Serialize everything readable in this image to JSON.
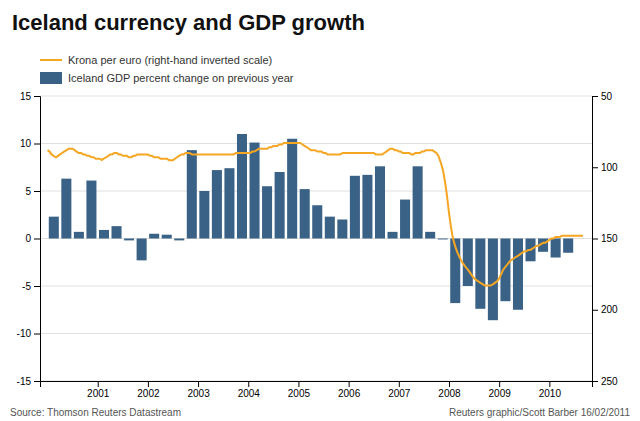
{
  "chart_data": {
    "type": "bar",
    "title": "Iceland currency and GDP growth",
    "annotations": [
      "Source: Thomson Reuters Datastream",
      "Reuters graphic/Scott Barber 16/02/2011"
    ],
    "xlim": [
      1999.85,
      2010.85
    ],
    "xticks": [
      2001,
      2002,
      2003,
      2004,
      2005,
      2006,
      2007,
      2008,
      2009,
      2010
    ],
    "ylim": [
      -15,
      15
    ],
    "yticks": [
      -15,
      -10,
      -5,
      0,
      5,
      10,
      15
    ],
    "y2lim": [
      250,
      50
    ],
    "y2ticks": [
      50,
      100,
      150,
      200,
      250
    ],
    "grid": true,
    "legend": "upper left",
    "series": [
      {
        "name": "Krona per euro (right-hand inverted scale)",
        "type": "line",
        "axis": "y2",
        "color": "#f5a623",
        "x": [
          2000.0,
          2000.04,
          2000.08,
          2000.12,
          2000.17,
          2000.21,
          2000.25,
          2000.29,
          2000.33,
          2000.38,
          2000.42,
          2000.46,
          2000.5,
          2000.54,
          2000.58,
          2000.62,
          2000.67,
          2000.71,
          2000.75,
          2000.79,
          2000.83,
          2000.88,
          2000.92,
          2000.96,
          2001.0,
          2001.04,
          2001.08,
          2001.12,
          2001.17,
          2001.21,
          2001.25,
          2001.29,
          2001.33,
          2001.38,
          2001.42,
          2001.46,
          2001.5,
          2001.54,
          2001.58,
          2001.62,
          2001.67,
          2001.71,
          2001.75,
          2001.79,
          2001.83,
          2001.88,
          2001.92,
          2001.96,
          2002.0,
          2002.04,
          2002.08,
          2002.12,
          2002.17,
          2002.21,
          2002.25,
          2002.29,
          2002.33,
          2002.38,
          2002.42,
          2002.46,
          2002.5,
          2002.54,
          2002.58,
          2002.62,
          2002.67,
          2002.71,
          2002.75,
          2002.79,
          2002.83,
          2002.88,
          2002.92,
          2002.96,
          2003.0,
          2003.04,
          2003.08,
          2003.12,
          2003.17,
          2003.21,
          2003.25,
          2003.29,
          2003.33,
          2003.38,
          2003.42,
          2003.46,
          2003.5,
          2003.54,
          2003.58,
          2003.62,
          2003.67,
          2003.71,
          2003.75,
          2003.79,
          2003.83,
          2003.88,
          2003.92,
          2003.96,
          2004.0,
          2004.04,
          2004.08,
          2004.12,
          2004.17,
          2004.21,
          2004.25,
          2004.29,
          2004.33,
          2004.38,
          2004.42,
          2004.46,
          2004.5,
          2004.54,
          2004.58,
          2004.62,
          2004.67,
          2004.71,
          2004.75,
          2004.79,
          2004.83,
          2004.88,
          2004.92,
          2004.96,
          2005.0,
          2005.04,
          2005.08,
          2005.12,
          2005.17,
          2005.21,
          2005.25,
          2005.29,
          2005.33,
          2005.38,
          2005.42,
          2005.46,
          2005.5,
          2005.54,
          2005.58,
          2005.62,
          2005.67,
          2005.71,
          2005.75,
          2005.79,
          2005.83,
          2005.88,
          2005.92,
          2005.96,
          2006.0,
          2006.04,
          2006.08,
          2006.12,
          2006.17,
          2006.21,
          2006.25,
          2006.29,
          2006.33,
          2006.38,
          2006.42,
          2006.46,
          2006.5,
          2006.54,
          2006.58,
          2006.62,
          2006.67,
          2006.71,
          2006.75,
          2006.79,
          2006.83,
          2006.88,
          2006.92,
          2006.96,
          2007.0,
          2007.04,
          2007.08,
          2007.12,
          2007.17,
          2007.21,
          2007.25,
          2007.29,
          2007.33,
          2007.38,
          2007.42,
          2007.46,
          2007.5,
          2007.54,
          2007.58,
          2007.62,
          2007.67,
          2007.71,
          2007.75,
          2007.79,
          2007.83,
          2007.88,
          2007.92,
          2007.96,
          2008.0,
          2008.04,
          2008.08,
          2008.12,
          2008.17,
          2008.21,
          2008.25,
          2008.29,
          2008.33,
          2008.38,
          2008.42,
          2008.46,
          2008.5,
          2008.54,
          2008.58,
          2008.62,
          2008.67,
          2008.71,
          2008.75,
          2008.79,
          2008.83,
          2008.88,
          2008.92,
          2008.96,
          2009.0,
          2009.04,
          2009.08,
          2009.12,
          2009.17,
          2009.21,
          2009.25,
          2009.29,
          2009.33,
          2009.38,
          2009.42,
          2009.46,
          2009.5,
          2009.54,
          2009.58,
          2009.62,
          2009.67,
          2009.71,
          2009.75,
          2009.79,
          2009.83,
          2009.88,
          2009.92,
          2009.96,
          2010.0,
          2010.04,
          2010.08,
          2010.12,
          2010.17,
          2010.21,
          2010.25,
          2010.29,
          2010.33,
          2010.38,
          2010.42,
          2010.46,
          2010.5,
          2010.54,
          2010.58,
          2010.62,
          2010.67
        ],
        "values": [
          88,
          89,
          91,
          92,
          93,
          92,
          91,
          90,
          89,
          88,
          87,
          87,
          87,
          88,
          89,
          90,
          90,
          91,
          91,
          92,
          92,
          93,
          93,
          94,
          94,
          94,
          95,
          94,
          93,
          92,
          91,
          91,
          90,
          90,
          91,
          91,
          92,
          92,
          92,
          93,
          93,
          92,
          92,
          91,
          91,
          91,
          91,
          91,
          91,
          92,
          92,
          93,
          93,
          93,
          94,
          94,
          94,
          94,
          95,
          95,
          95,
          94,
          93,
          92,
          91,
          91,
          90,
          90,
          90,
          91,
          91,
          91,
          91,
          91,
          91,
          91,
          91,
          91,
          91,
          91,
          91,
          91,
          91,
          91,
          91,
          91,
          91,
          91,
          91,
          91,
          90,
          90,
          90,
          90,
          90,
          90,
          90,
          90,
          89,
          89,
          88,
          87,
          87,
          87,
          87,
          87,
          86,
          86,
          85,
          85,
          85,
          84,
          84,
          83,
          83,
          83,
          83,
          83,
          83,
          83,
          83,
          83,
          84,
          85,
          86,
          87,
          88,
          88,
          88,
          89,
          89,
          89,
          90,
          90,
          91,
          91,
          91,
          91,
          91,
          91,
          91,
          90,
          90,
          90,
          90,
          90,
          90,
          90,
          90,
          90,
          90,
          90,
          90,
          90,
          90,
          90,
          90,
          91,
          91,
          91,
          91,
          90,
          89,
          88,
          87,
          87,
          88,
          88,
          89,
          89,
          90,
          90,
          90,
          90,
          91,
          91,
          90,
          90,
          90,
          89,
          89,
          88,
          88,
          88,
          88,
          89,
          90,
          92,
          96,
          102,
          110,
          120,
          132,
          142,
          150,
          155,
          160,
          163,
          166,
          168,
          170,
          172,
          174,
          176,
          178,
          179,
          180,
          181,
          182,
          183,
          183,
          183,
          183,
          182,
          181,
          180,
          178,
          175,
          172,
          170,
          168,
          166,
          165,
          164,
          163,
          162,
          161,
          160,
          159,
          159,
          158,
          158,
          157,
          156,
          155,
          155,
          154,
          153,
          153,
          152,
          151,
          150,
          150,
          149,
          149,
          149,
          148,
          148,
          148,
          148,
          148,
          148,
          148,
          148,
          148,
          148,
          148
        ]
      },
      {
        "name": "Iceland GDP percent change on previous year",
        "type": "bar",
        "color": "#3a6186",
        "x": [
          2000.125,
          2000.375,
          2000.625,
          2000.875,
          2001.125,
          2001.375,
          2001.625,
          2001.875,
          2002.125,
          2002.375,
          2002.625,
          2002.875,
          2003.125,
          2003.375,
          2003.625,
          2003.875,
          2004.125,
          2004.375,
          2004.625,
          2004.875,
          2005.125,
          2005.375,
          2005.625,
          2005.875,
          2006.125,
          2006.375,
          2006.625,
          2006.875,
          2007.125,
          2007.375,
          2007.625,
          2007.875,
          2008.125,
          2008.375,
          2008.625,
          2008.875,
          2009.125,
          2009.375,
          2009.625,
          2009.875,
          2010.125,
          2010.375
        ],
        "values": [
          2.3,
          6.3,
          0.7,
          6.1,
          0.9,
          1.3,
          -0.2,
          -2.3,
          0.5,
          0.4,
          -0.2,
          9.3,
          5.0,
          7.2,
          7.4,
          11.0,
          10.1,
          5.5,
          7.0,
          10.5,
          5.2,
          3.5,
          2.3,
          2.0,
          6.6,
          6.7,
          7.6,
          0.7,
          4.1,
          7.6,
          0.7,
          -0.1,
          -6.8,
          -5.0,
          -7.4,
          -8.6,
          -6.6,
          -7.5,
          -2.4,
          -1.4,
          -2.0,
          -1.5
        ]
      }
    ]
  }
}
